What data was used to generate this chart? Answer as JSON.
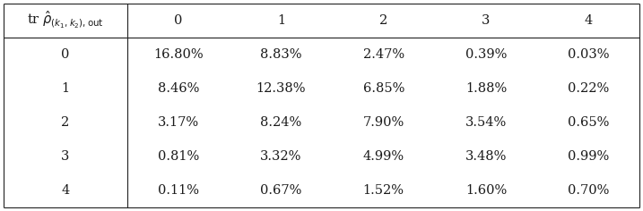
{
  "col_headers": [
    "0",
    "1",
    "2",
    "3",
    "4"
  ],
  "row_headers": [
    "0",
    "1",
    "2",
    "3",
    "4"
  ],
  "values": [
    [
      "16.80%",
      "8.83%",
      "2.47%",
      "0.39%",
      "0.03%"
    ],
    [
      "8.46%",
      "12.38%",
      "6.85%",
      "1.88%",
      "0.22%"
    ],
    [
      "3.17%",
      "8.24%",
      "7.90%",
      "3.54%",
      "0.65%"
    ],
    [
      "0.81%",
      "3.32%",
      "4.99%",
      "3.48%",
      "0.99%"
    ],
    [
      "0.11%",
      "0.67%",
      "1.52%",
      "1.60%",
      "0.70%"
    ]
  ],
  "bg_color": "#ffffff",
  "text_color": "#1a1a1a",
  "line_color": "#222222",
  "font_size": 10.5,
  "header_label_fontsize": 10.5
}
